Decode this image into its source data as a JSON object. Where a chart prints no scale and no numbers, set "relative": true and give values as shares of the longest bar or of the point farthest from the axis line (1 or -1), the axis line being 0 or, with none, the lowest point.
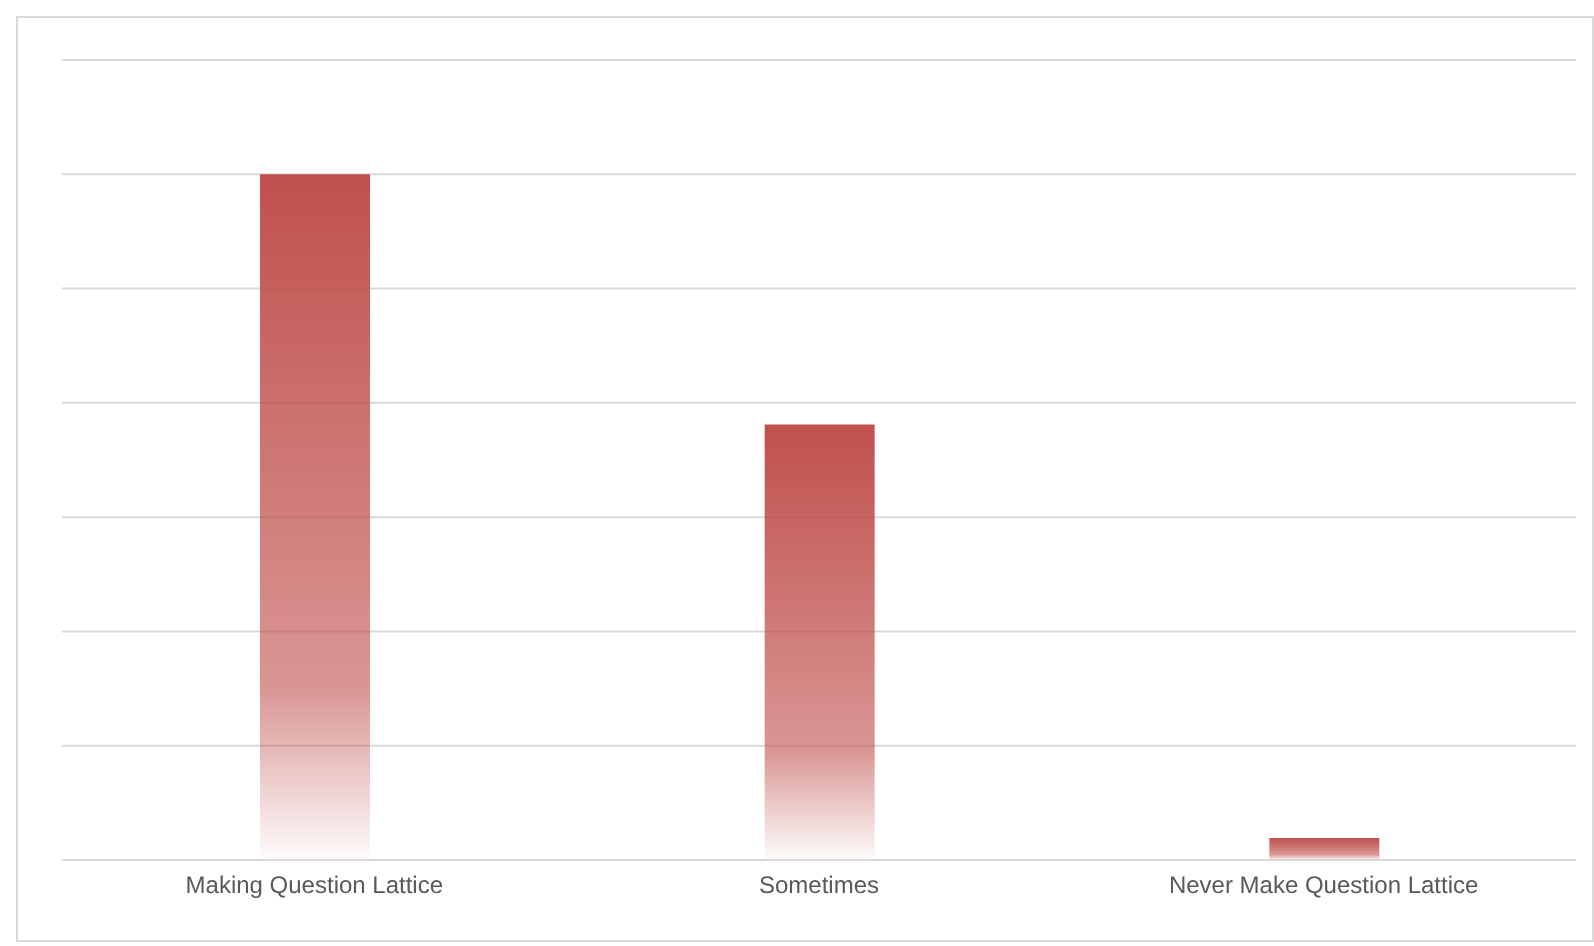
{
  "chart_data": {
    "type": "bar",
    "categories": [
      "Making Question Lattice",
      "Sometimes",
      "Never Make Question Lattice"
    ],
    "values": [
      1,
      0.635,
      0.032
    ],
    "color": "#c0504d",
    "relative": true,
    "grid": "y"
  }
}
